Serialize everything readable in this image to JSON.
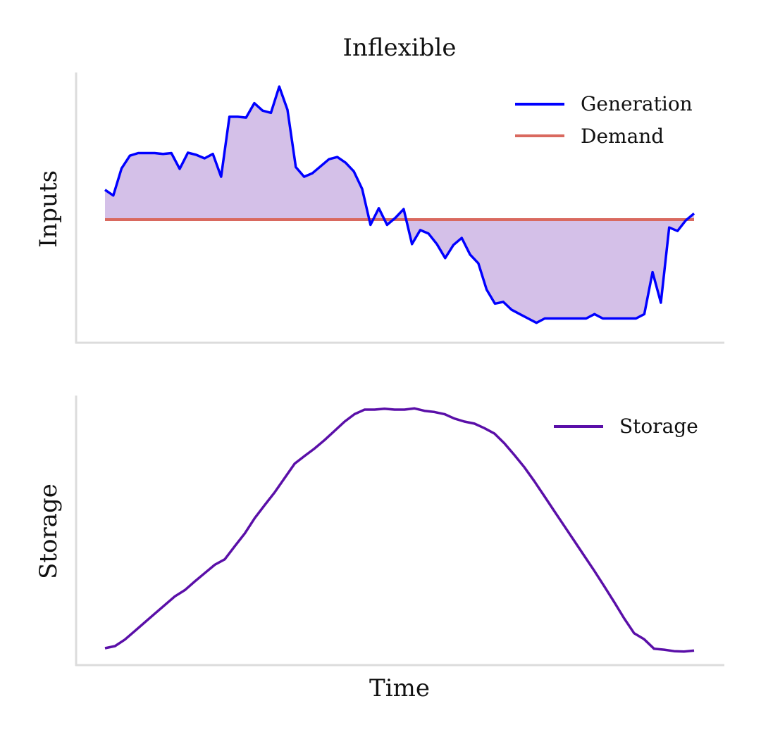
{
  "chart_data": [
    {
      "type": "line",
      "title": "Inflexible",
      "ylabel": "Inputs",
      "xlabel": "",
      "grid": false,
      "legend": "top-right",
      "series": [
        {
          "name": "Generation",
          "color": "#0000ff",
          "values": [
            0.68,
            0.55,
            1.17,
            1.46,
            1.52,
            1.52,
            1.52,
            1.5,
            1.52,
            1.16,
            1.53,
            1.48,
            1.4,
            1.5,
            0.98,
            2.35,
            2.35,
            2.33,
            2.66,
            2.49,
            2.44,
            3.04,
            2.51,
            1.2,
            0.98,
            1.06,
            1.22,
            1.38,
            1.43,
            1.3,
            1.1,
            0.7,
            -0.12,
            0.26,
            -0.12,
            0.04,
            0.24,
            -0.56,
            -0.24,
            -0.32,
            -0.56,
            -0.88,
            -0.58,
            -0.42,
            -0.8,
            -1.0,
            -1.6,
            -1.92,
            -1.88,
            -2.06,
            -2.16,
            -2.26,
            -2.36,
            -2.26,
            -2.26,
            -2.26,
            -2.26,
            -2.26,
            -2.26,
            -2.16,
            -2.26,
            -2.26,
            -2.26,
            -2.26,
            -2.26,
            -2.16,
            -1.2,
            -1.9,
            -0.18,
            -0.26,
            -0.02,
            0.14
          ]
        },
        {
          "name": "Demand",
          "color": "#d9695f",
          "values": [
            0,
            0,
            0,
            0,
            0,
            0,
            0,
            0,
            0,
            0,
            0,
            0,
            0,
            0,
            0,
            0,
            0,
            0,
            0,
            0,
            0,
            0,
            0,
            0,
            0,
            0,
            0,
            0,
            0,
            0,
            0,
            0,
            0,
            0,
            0,
            0,
            0,
            0,
            0,
            0,
            0,
            0,
            0,
            0,
            0,
            0,
            0,
            0,
            0,
            0,
            0,
            0,
            0,
            0,
            0,
            0,
            0,
            0,
            0,
            0,
            0,
            0,
            0,
            0,
            0,
            0,
            0,
            0,
            0,
            0,
            0,
            0
          ]
        }
      ],
      "fill_between": {
        "series": [
          "Generation",
          "Demand"
        ],
        "color": "#b896d8"
      }
    },
    {
      "type": "line",
      "title": "",
      "ylabel": "Storage",
      "xlabel": "Time",
      "grid": false,
      "legend": "top-right",
      "series": [
        {
          "name": "Storage",
          "color": "#5a0fa8",
          "values": [
            0.0,
            0.007,
            0.029,
            0.058,
            0.087,
            0.116,
            0.145,
            0.174,
            0.195,
            0.224,
            0.252,
            0.28,
            0.298,
            0.342,
            0.385,
            0.436,
            0.48,
            0.523,
            0.571,
            0.619,
            0.645,
            0.67,
            0.698,
            0.729,
            0.76,
            0.785,
            0.8,
            0.8,
            0.803,
            0.8,
            0.8,
            0.804,
            0.796,
            0.792,
            0.785,
            0.77,
            0.76,
            0.753,
            0.738,
            0.72,
            0.687,
            0.648,
            0.607,
            0.56,
            0.51,
            0.46,
            0.41,
            0.36,
            0.31,
            0.26,
            0.208,
            0.155,
            0.1,
            0.05,
            0.03,
            -0.002,
            -0.005,
            -0.01,
            -0.011,
            -0.008
          ]
        }
      ]
    }
  ]
}
